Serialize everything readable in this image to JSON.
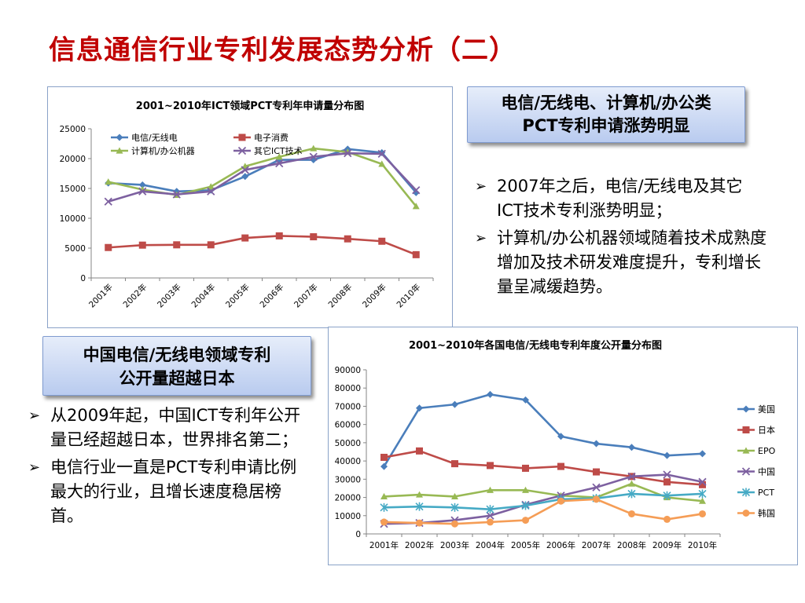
{
  "slide": {
    "title": "信息通信行业专利发展态势分析（二）"
  },
  "callouts": {
    "top_line1": "电信/无线电、计算机/办公类",
    "top_line2": "PCT专利申请涨势明显",
    "bottom_line1": "中国电信/无线电领域专利",
    "bottom_line2": "公开量超越日本"
  },
  "bullets_top": [
    "2007年之后，电信/无线电及其它ICT技术专利涨势明显；",
    "计算机/办公机器领域随着技术成熟度增加及技术研发难度提升，专利增长量呈减缓趋势。"
  ],
  "bullets_bottom": [
    "从2009年起，中国ICT专利年公开量已经超越日本，世界排名第二；",
    "电信行业一直是PCT专利申请比例最大的行业，且增长速度稳居榜首。"
  ],
  "chart_data": [
    {
      "type": "line",
      "title": "2001~2010年ICT领域PCT专利年申请量分布图",
      "categories": [
        "2001年",
        "2002年",
        "2003年",
        "2004年",
        "2005年",
        "2006年",
        "2007年",
        "2008年",
        "2009年",
        "2010年"
      ],
      "ylim": [
        0,
        25000
      ],
      "yticks": [
        "0",
        "5000",
        "10000",
        "15000",
        "20000",
        "25000"
      ],
      "legend_position": "top",
      "series": [
        {
          "name": "电信/无线电",
          "color": "#4a7ebb",
          "marker": "diamond",
          "values": [
            15900,
            15600,
            14500,
            14700,
            17000,
            19800,
            19800,
            21600,
            21000,
            14300
          ]
        },
        {
          "name": "电子消费",
          "color": "#be4b48",
          "marker": "square",
          "values": [
            5100,
            5500,
            5550,
            5550,
            6700,
            7050,
            6900,
            6550,
            6150,
            3900
          ]
        },
        {
          "name": "计算机/办公机器",
          "color": "#98b954",
          "marker": "triangle",
          "values": [
            16100,
            14800,
            13900,
            15300,
            18700,
            20300,
            21700,
            21100,
            19100,
            12000
          ]
        },
        {
          "name": "其它ICT技术",
          "color": "#7d60a0",
          "marker": "x",
          "values": [
            12800,
            14500,
            14000,
            14500,
            18100,
            19200,
            20300,
            20900,
            20800,
            14700
          ]
        }
      ]
    },
    {
      "type": "line",
      "title": "2001~2010年各国电信/无线电专利年度公开量分布图",
      "categories": [
        "2001年",
        "2002年",
        "2003年",
        "2004年",
        "2005年",
        "2006年",
        "2007年",
        "2008年",
        "2009年",
        "2010年"
      ],
      "ylim": [
        0,
        90000
      ],
      "yticks": [
        "0",
        "10000",
        "20000",
        "30000",
        "40000",
        "50000",
        "60000",
        "70000",
        "80000",
        "90000"
      ],
      "legend_position": "right",
      "series": [
        {
          "name": "美国",
          "color": "#4a7ebb",
          "marker": "diamond",
          "values": [
            37000,
            69000,
            71000,
            76500,
            73500,
            53500,
            49500,
            47500,
            43000,
            44000
          ]
        },
        {
          "name": "日本",
          "color": "#be4b48",
          "marker": "square",
          "values": [
            42000,
            45500,
            38500,
            37500,
            36000,
            37000,
            34000,
            31500,
            28500,
            27000
          ]
        },
        {
          "name": "EPO",
          "color": "#98b954",
          "marker": "triangle",
          "values": [
            20500,
            21500,
            20500,
            24000,
            24000,
            21000,
            20000,
            27500,
            20000,
            18000
          ]
        },
        {
          "name": "中国",
          "color": "#7d60a0",
          "marker": "x",
          "values": [
            5500,
            6000,
            7500,
            10000,
            16000,
            21000,
            25500,
            31500,
            32500,
            28500
          ]
        },
        {
          "name": "PCT",
          "color": "#46aac5",
          "marker": "star",
          "values": [
            14500,
            15000,
            14500,
            13500,
            15500,
            19000,
            19500,
            22000,
            21000,
            22000
          ]
        },
        {
          "name": "韩国",
          "color": "#f59d56",
          "marker": "circle",
          "values": [
            6500,
            6000,
            5500,
            6500,
            7500,
            18000,
            19000,
            11000,
            8000,
            11000
          ]
        }
      ]
    }
  ]
}
